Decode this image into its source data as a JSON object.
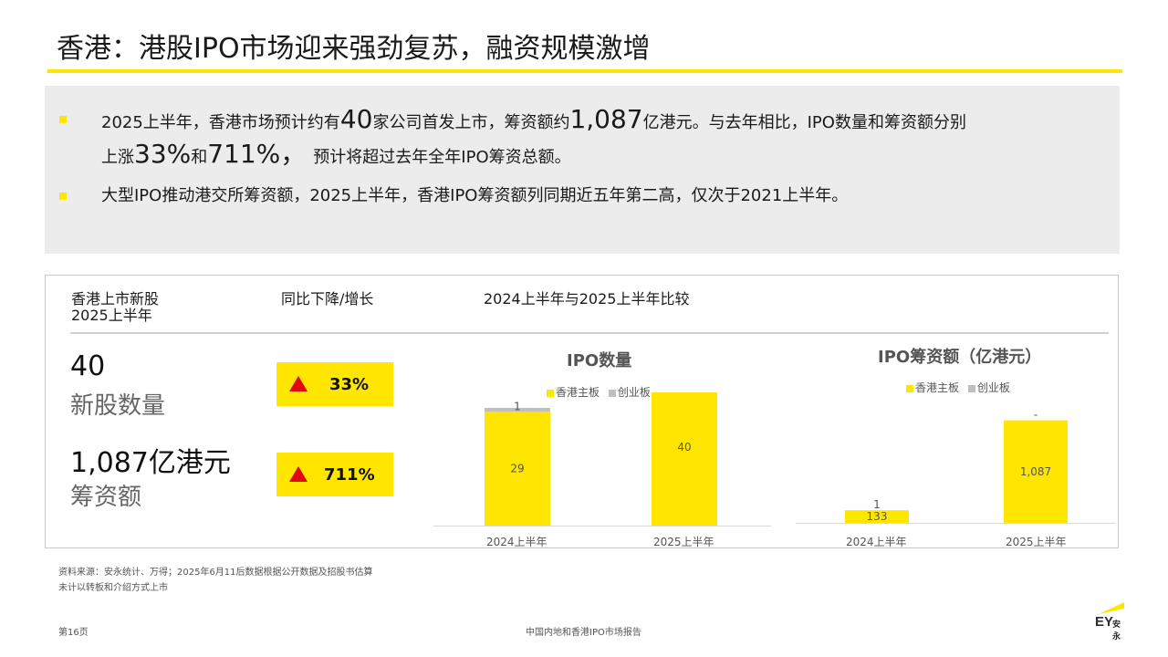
{
  "title": "香港：港股IPO市场迎来强劲复苏，融资规模激增",
  "summary": {
    "line1_a": "2025上半年，香港市场预计约有",
    "line1_b": "40",
    "line1_c": "家公司首发上市，筹资额约",
    "line1_d": "1,087",
    "line1_e": "亿港元。与去年相比，IPO数量和筹资额分别",
    "line2_a": "上涨",
    "line2_b": "33%",
    "line2_c": "和",
    "line2_d": "711%，",
    "line2_e": "预计将超过去年全年IPO筹资总额。",
    "line3": "大型IPO推动港交所筹资额，2025上半年，香港IPO筹资额列同期近五年第二高，仅次于2021上半年。"
  },
  "panel": {
    "col1_header_1": "香港上市新股",
    "col1_header_2": "2025上半年",
    "col2_header": "同比下降/增长",
    "col3_header": "2024上半年与2025上半年比较",
    "stat1_value": "40",
    "stat1_label": "新股数量",
    "stat1_change": "33%",
    "stat2_value": "1,087亿港元",
    "stat2_label": "筹资额",
    "stat2_change": "711%"
  },
  "colors": {
    "accent": "#ffe600",
    "secondary": "#bfbfbf",
    "up_arrow": "#e30613"
  },
  "chart_data": [
    {
      "type": "bar",
      "stacked": true,
      "title": "IPO数量",
      "categories": [
        "2024上半年",
        "2025上半年"
      ],
      "series": [
        {
          "name": "香港主板",
          "values": [
            29,
            40
          ],
          "labels": [
            "29",
            "40"
          ]
        },
        {
          "name": "创业板",
          "values": [
            1,
            0
          ],
          "labels": [
            "1",
            ""
          ]
        }
      ],
      "legend": "top"
    },
    {
      "type": "bar",
      "stacked": true,
      "title": "IPO筹资额（亿港元）",
      "categories": [
        "2024上半年",
        "2025上半年"
      ],
      "series": [
        {
          "name": "香港主板",
          "values": [
            133,
            1087
          ],
          "labels": [
            "133",
            "1,087"
          ]
        },
        {
          "name": "创业板",
          "values": [
            1,
            0
          ],
          "labels": [
            "1",
            "-"
          ]
        }
      ],
      "legend": "top"
    }
  ],
  "footer": {
    "source": "资料来源：安永统计、万得；2025年6月11后数据根据公开数据及招股书估算",
    "note": "未计以转板和介绍方式上市",
    "page": "第16页",
    "report": "中国内地和香港IPO市场报告",
    "logo_text": "EY",
    "logo_cn": "安永"
  }
}
